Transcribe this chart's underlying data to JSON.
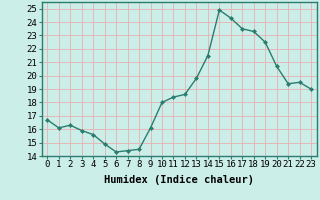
{
  "x": [
    0,
    1,
    2,
    3,
    4,
    5,
    6,
    7,
    8,
    9,
    10,
    11,
    12,
    13,
    14,
    15,
    16,
    17,
    18,
    19,
    20,
    21,
    22,
    23
  ],
  "y": [
    16.7,
    16.1,
    16.3,
    15.9,
    15.6,
    14.9,
    14.3,
    14.4,
    14.5,
    16.1,
    18.0,
    18.4,
    18.6,
    19.8,
    21.5,
    24.9,
    24.3,
    23.5,
    23.3,
    22.5,
    20.7,
    19.4,
    19.5,
    19.0
  ],
  "line_color": "#2a7d6f",
  "marker": "D",
  "marker_size": 2.0,
  "line_width": 1.0,
  "xlabel": "Humidex (Indice chaleur)",
  "xlabel_fontsize": 7.5,
  "ylim": [
    14,
    25.5
  ],
  "xlim": [
    -0.5,
    23.5
  ],
  "yticks": [
    14,
    15,
    16,
    17,
    18,
    19,
    20,
    21,
    22,
    23,
    24,
    25
  ],
  "xticks": [
    0,
    1,
    2,
    3,
    4,
    5,
    6,
    7,
    8,
    9,
    10,
    11,
    12,
    13,
    14,
    15,
    16,
    17,
    18,
    19,
    20,
    21,
    22,
    23
  ],
  "bg_color": "#cceee8",
  "grid_color": "#e8b0b0",
  "tick_fontsize": 6.5,
  "axis_color": "#2a7d6f"
}
